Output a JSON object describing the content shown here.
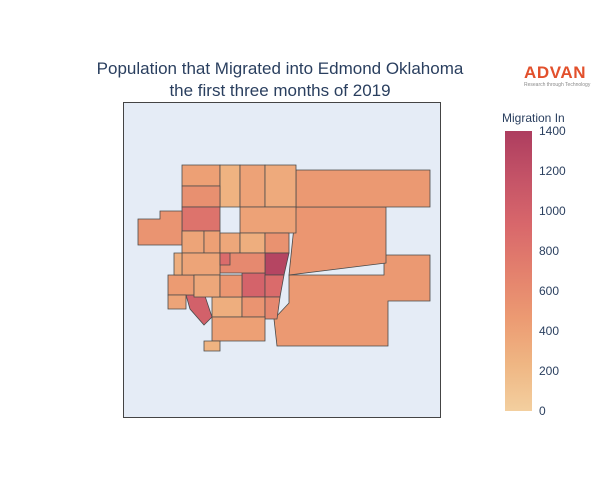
{
  "title_line1": "Population that Migrated into Edmond Oklahoma",
  "title_line2": "the first three months of 2019",
  "logo": {
    "word": "ADVAN",
    "tagline": "Research through Technology"
  },
  "colorbar": {
    "title": "Migration In",
    "min": 0,
    "max": 1400,
    "ticks": [
      "1400",
      "1200",
      "1000",
      "800",
      "600",
      "400",
      "200",
      "0"
    ],
    "colors": [
      "#f3cf9f",
      "#efb683",
      "#ec9a72",
      "#e3806d",
      "#d8676b",
      "#c45367",
      "#ad3d5f"
    ]
  },
  "regions": [
    {
      "id": "large-east-south",
      "migration": 480
    },
    {
      "id": "large-east-north",
      "migration": 500
    },
    {
      "id": "northeast-strip",
      "migration": 480
    },
    {
      "id": "north-col-a",
      "migration": 420
    },
    {
      "id": "north-col-b",
      "migration": 260
    },
    {
      "id": "north-col-c",
      "migration": 400
    },
    {
      "id": "north-col-d",
      "migration": 330
    },
    {
      "id": "north-col-e",
      "migration": 400
    },
    {
      "id": "nw-top",
      "migration": 560
    },
    {
      "id": "nw-red",
      "migration": 820
    },
    {
      "id": "west-strip",
      "migration": 520
    },
    {
      "id": "mid-1",
      "migration": 380
    },
    {
      "id": "mid-2",
      "migration": 420
    },
    {
      "id": "mid-3",
      "migration": 360
    },
    {
      "id": "mid-4",
      "migration": 300
    },
    {
      "id": "mid-5",
      "migration": 540
    },
    {
      "id": "center-dark",
      "migration": 1320
    },
    {
      "id": "center-red",
      "migration": 980
    },
    {
      "id": "center-red2",
      "migration": 900
    },
    {
      "id": "center-mid",
      "migration": 620
    },
    {
      "id": "sw-red",
      "migration": 1000
    },
    {
      "id": "sw-1",
      "migration": 460
    },
    {
      "id": "sw-2",
      "migration": 380
    },
    {
      "id": "sw-3",
      "migration": 300
    },
    {
      "id": "sw-4",
      "migration": 520
    },
    {
      "id": "south-1",
      "migration": 640
    },
    {
      "id": "south-2",
      "migration": 420
    },
    {
      "id": "south-3",
      "migration": 360
    },
    {
      "id": "small-red",
      "migration": 900
    },
    {
      "id": "small-1",
      "migration": 300
    },
    {
      "id": "small-2",
      "migration": 500
    },
    {
      "id": "small-3",
      "migration": 380
    },
    {
      "id": "small-4",
      "migration": 260
    }
  ]
}
